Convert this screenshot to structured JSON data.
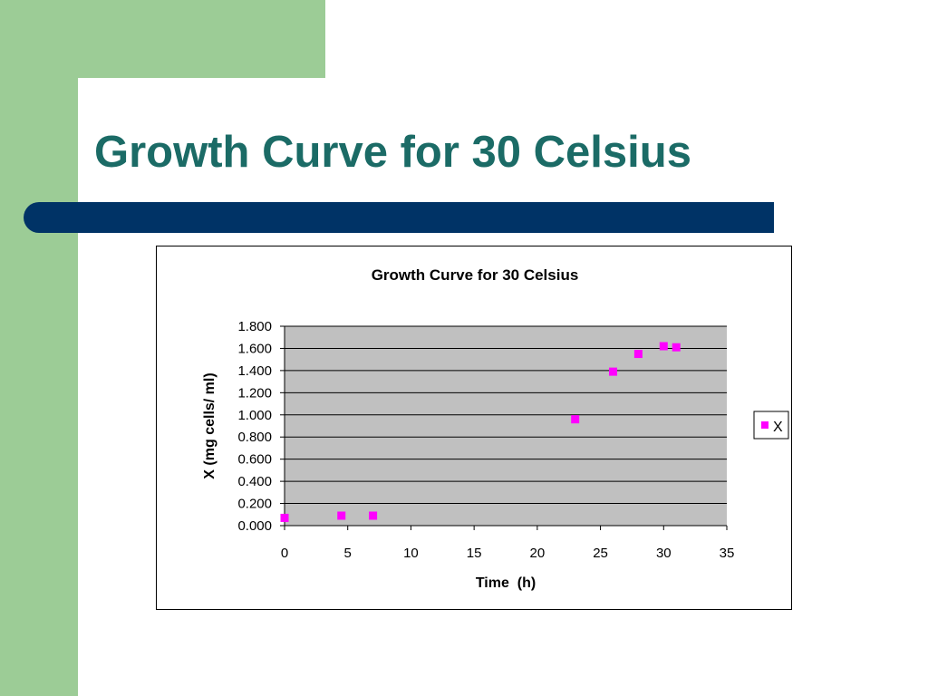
{
  "slide": {
    "title": "Growth Curve for 30 Celsius"
  },
  "colors": {
    "accent_green": "#9ccc96",
    "title_teal": "#1b6b66",
    "bar_navy": "#003366",
    "plot_area": "#c0c0c0",
    "marker": "#ff00ff"
  },
  "chart_data": {
    "type": "scatter",
    "title": "Growth Curve for 30 Celsius",
    "xlabel": "Time  (h)",
    "ylabel": "X (mg cells/ ml)",
    "xlim": [
      0,
      35
    ],
    "ylim": [
      0,
      1.8
    ],
    "x_ticks": [
      "0",
      "5",
      "10",
      "15",
      "20",
      "25",
      "30",
      "35"
    ],
    "y_ticks": [
      "0.000",
      "0.200",
      "0.400",
      "0.600",
      "0.800",
      "1.000",
      "1.200",
      "1.400",
      "1.600",
      "1.800"
    ],
    "grid": "horizontal",
    "legend_position": "right",
    "series": [
      {
        "name": "X",
        "marker": "square",
        "color": "#ff00ff",
        "x": [
          0,
          4.5,
          7,
          23,
          26,
          28,
          30,
          31
        ],
        "y": [
          0.07,
          0.09,
          0.09,
          0.96,
          1.39,
          1.55,
          1.62,
          1.61
        ]
      }
    ]
  }
}
